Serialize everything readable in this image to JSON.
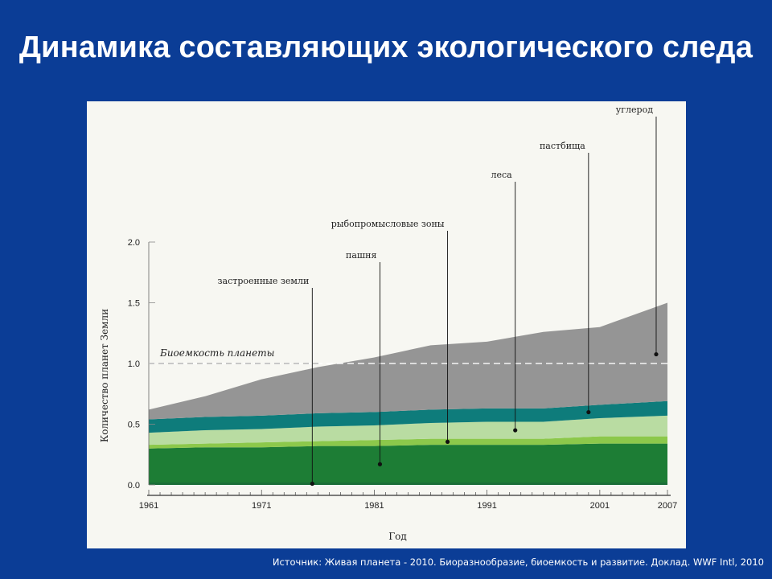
{
  "title": "Динамика составляющих экологического следа",
  "source": "Источник: Живая планета - 2010. Биоразнообразие, биоемкость и развитие. Доклад. WWF Intl, 2010",
  "chart_data": {
    "type": "area",
    "stacked": true,
    "xlabel": "Год",
    "ylabel": "Количество планет Земли",
    "x_ticks": [
      1961,
      1971,
      1981,
      1991,
      2001,
      2007
    ],
    "y_ticks": [
      "0.0",
      "0.5",
      "1.0",
      "1.5",
      "2.0"
    ],
    "xlim": [
      1961,
      2007
    ],
    "ylim": [
      0,
      2.0
    ],
    "grid": false,
    "reference_line": {
      "label": "Биоемкость планеты",
      "value": 1.0,
      "color": "#aaaaaa"
    },
    "x": [
      1961,
      1966,
      1971,
      1976,
      1981,
      1986,
      1991,
      1996,
      2001,
      2007
    ],
    "series": [
      {
        "name": "застроенные земли",
        "color": "#1a6e38",
        "values": [
          0.02,
          0.02,
          0.02,
          0.02,
          0.02,
          0.02,
          0.02,
          0.02,
          0.02,
          0.02
        ]
      },
      {
        "name": "пашня",
        "color": "#1d7d35",
        "values": [
          0.28,
          0.29,
          0.29,
          0.3,
          0.3,
          0.31,
          0.31,
          0.31,
          0.32,
          0.32
        ]
      },
      {
        "name": "рыбопромысловые зоны",
        "color": "#8cc84b",
        "values": [
          0.03,
          0.03,
          0.04,
          0.04,
          0.05,
          0.05,
          0.05,
          0.05,
          0.06,
          0.06
        ]
      },
      {
        "name": "леса",
        "color": "#b9dca2",
        "values": [
          0.1,
          0.11,
          0.11,
          0.12,
          0.12,
          0.13,
          0.14,
          0.14,
          0.15,
          0.17
        ]
      },
      {
        "name": "пастбища",
        "color": "#0e7c7b",
        "values": [
          0.11,
          0.11,
          0.11,
          0.11,
          0.11,
          0.11,
          0.11,
          0.11,
          0.11,
          0.12
        ]
      },
      {
        "name": "углерод",
        "color": "#959595",
        "values": [
          0.08,
          0.17,
          0.3,
          0.38,
          0.45,
          0.53,
          0.55,
          0.63,
          0.64,
          0.81
        ]
      }
    ],
    "annotations": [
      {
        "text": "застроенные земли",
        "series": "застроенные земли",
        "x": 1975.5
      },
      {
        "text": "пашня",
        "series": "пашня",
        "x": 1981.5
      },
      {
        "text": "рыбопромысловые зоны",
        "series": "рыбопромысловые зоны",
        "x": 1987.5
      },
      {
        "text": "леса",
        "series": "леса",
        "x": 1993.5
      },
      {
        "text": "пастбища",
        "series": "пастбища",
        "x": 2000
      },
      {
        "text": "углерод",
        "series": "углерод",
        "x": 2006
      }
    ]
  }
}
